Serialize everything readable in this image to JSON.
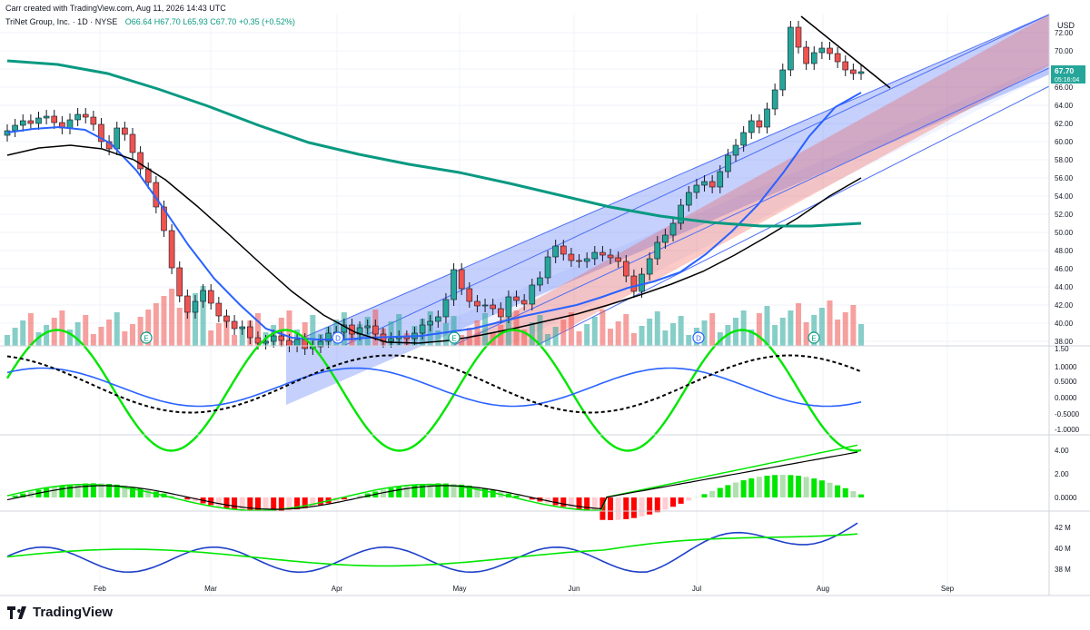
{
  "header": {
    "credit": "Carr created with TradingView.com, Aug 11, 2026 14:43 UTC",
    "symbol": "TriNet Group, Inc. · 1D · NYSE",
    "ohlc": "O66.64 H67.70 L65.93 C67.70 +0.35 (+0.52%)"
  },
  "price_axis": {
    "currency": "USD",
    "last_price": "67.70",
    "countdown": "05:16:04",
    "ticks": [
      "72.00",
      "70.00",
      "68.00",
      "66.00",
      "64.00",
      "62.00",
      "60.00",
      "58.00",
      "56.00",
      "54.00",
      "52.00",
      "50.00",
      "48.00",
      "46.00",
      "44.00",
      "42.00",
      "40.00",
      "38.00"
    ]
  },
  "oscillator_axis": {
    "ticks": [
      "1.50",
      "1.0000",
      "0.5000",
      "0.0000",
      "-0.5000",
      "-1.0000"
    ]
  },
  "macd_axis": {
    "ticks": [
      "4.00",
      "2.00",
      "0.0000"
    ]
  },
  "volume_axis": {
    "ticks": [
      "42 M",
      "40 M",
      "38 M"
    ]
  },
  "time_axis": {
    "labels": [
      "Feb",
      "Mar",
      "Apr",
      "May",
      "Jun",
      "Jul",
      "Aug",
      "Sep"
    ]
  },
  "events": [
    "E",
    "D",
    "E",
    "D",
    "E"
  ],
  "brand": {
    "name": "TradingView"
  },
  "colors": {
    "up": "#26a69a",
    "down": "#ef5350",
    "ma_fast": "#2962ff",
    "ma_slow": "#000000",
    "ma_long": "#089981",
    "osc_green": "#00e600",
    "channel_blue": "#4c6ef5",
    "channel_red": "#f44336"
  },
  "chart_data": {
    "type": "candlestick",
    "close_series": [
      61.2,
      61.8,
      62.3,
      62.0,
      62.6,
      62.8,
      62.1,
      61.5,
      62.4,
      63.0,
      62.7,
      61.9,
      60.0,
      59.2,
      61.5,
      60.8,
      58.8,
      57.0,
      55.5,
      52.8,
      50.2,
      46.1,
      43.0,
      41.2,
      42.4,
      43.6,
      42.2,
      40.8,
      40.2,
      39.4,
      39.6,
      38.4,
      37.8,
      38.0,
      38.6,
      38.1,
      37.5,
      38.2,
      37.2,
      37.4,
      38.0,
      38.9,
      39.0,
      39.8,
      38.8,
      39.5,
      39.7,
      38.8,
      38.0,
      38.3,
      38.5,
      38.3,
      38.9,
      39.8,
      40.2,
      40.7,
      42.6,
      45.9,
      43.8,
      42.4,
      41.9,
      42.0,
      41.6,
      40.7,
      42.9,
      42.5,
      42.1,
      44.2,
      45.0,
      47.3,
      48.5,
      47.6,
      46.9,
      46.8,
      47.1,
      47.8,
      47.5,
      47.2,
      46.8,
      45.2,
      43.5,
      45.4,
      47.1,
      48.9,
      49.7,
      51.0,
      53.0,
      54.4,
      55.2,
      55.6,
      55.0,
      56.7,
      58.5,
      59.6,
      61.0,
      62.3,
      61.6,
      63.6,
      65.7,
      67.9,
      72.6,
      70.4,
      68.6,
      69.8,
      70.3,
      69.7,
      68.8,
      67.9,
      67.5,
      67.7
    ],
    "series": [
      {
        "name": "MA fast",
        "values": [
          61.0,
          61.4,
          61.6,
          61.3,
          59.8,
          56.8,
          52.8,
          48.6,
          44.9,
          42.0,
          39.4,
          38.4,
          38.2,
          38.2,
          38.4,
          38.5,
          38.6,
          39.0,
          39.4,
          40.1,
          40.8,
          41.4,
          42.0,
          42.9,
          43.9,
          44.6,
          45.6,
          47.6,
          50.1,
          53.0,
          56.6,
          60.6,
          63.8,
          65.4
        ]
      },
      {
        "name": "MA slow",
        "values": [
          58.5,
          59.3,
          59.6,
          59.2,
          58.0,
          55.8,
          52.9,
          49.8,
          46.6,
          43.5,
          40.9,
          39.0,
          37.9,
          37.8,
          38.1,
          38.7,
          39.4,
          40.2,
          41.0,
          42.0,
          43.1,
          44.3,
          45.7,
          47.5,
          49.5,
          51.6,
          54.0,
          56.0
        ]
      },
      {
        "name": "MA long",
        "values": [
          68.9,
          68.5,
          67.5,
          65.8,
          63.9,
          61.8,
          59.9,
          58.6,
          57.5,
          56.6,
          55.4,
          54.1,
          52.8,
          51.8,
          51.1,
          50.7,
          50.7,
          51.0
        ]
      }
    ],
    "ylim": [
      37.5,
      74.0
    ]
  }
}
